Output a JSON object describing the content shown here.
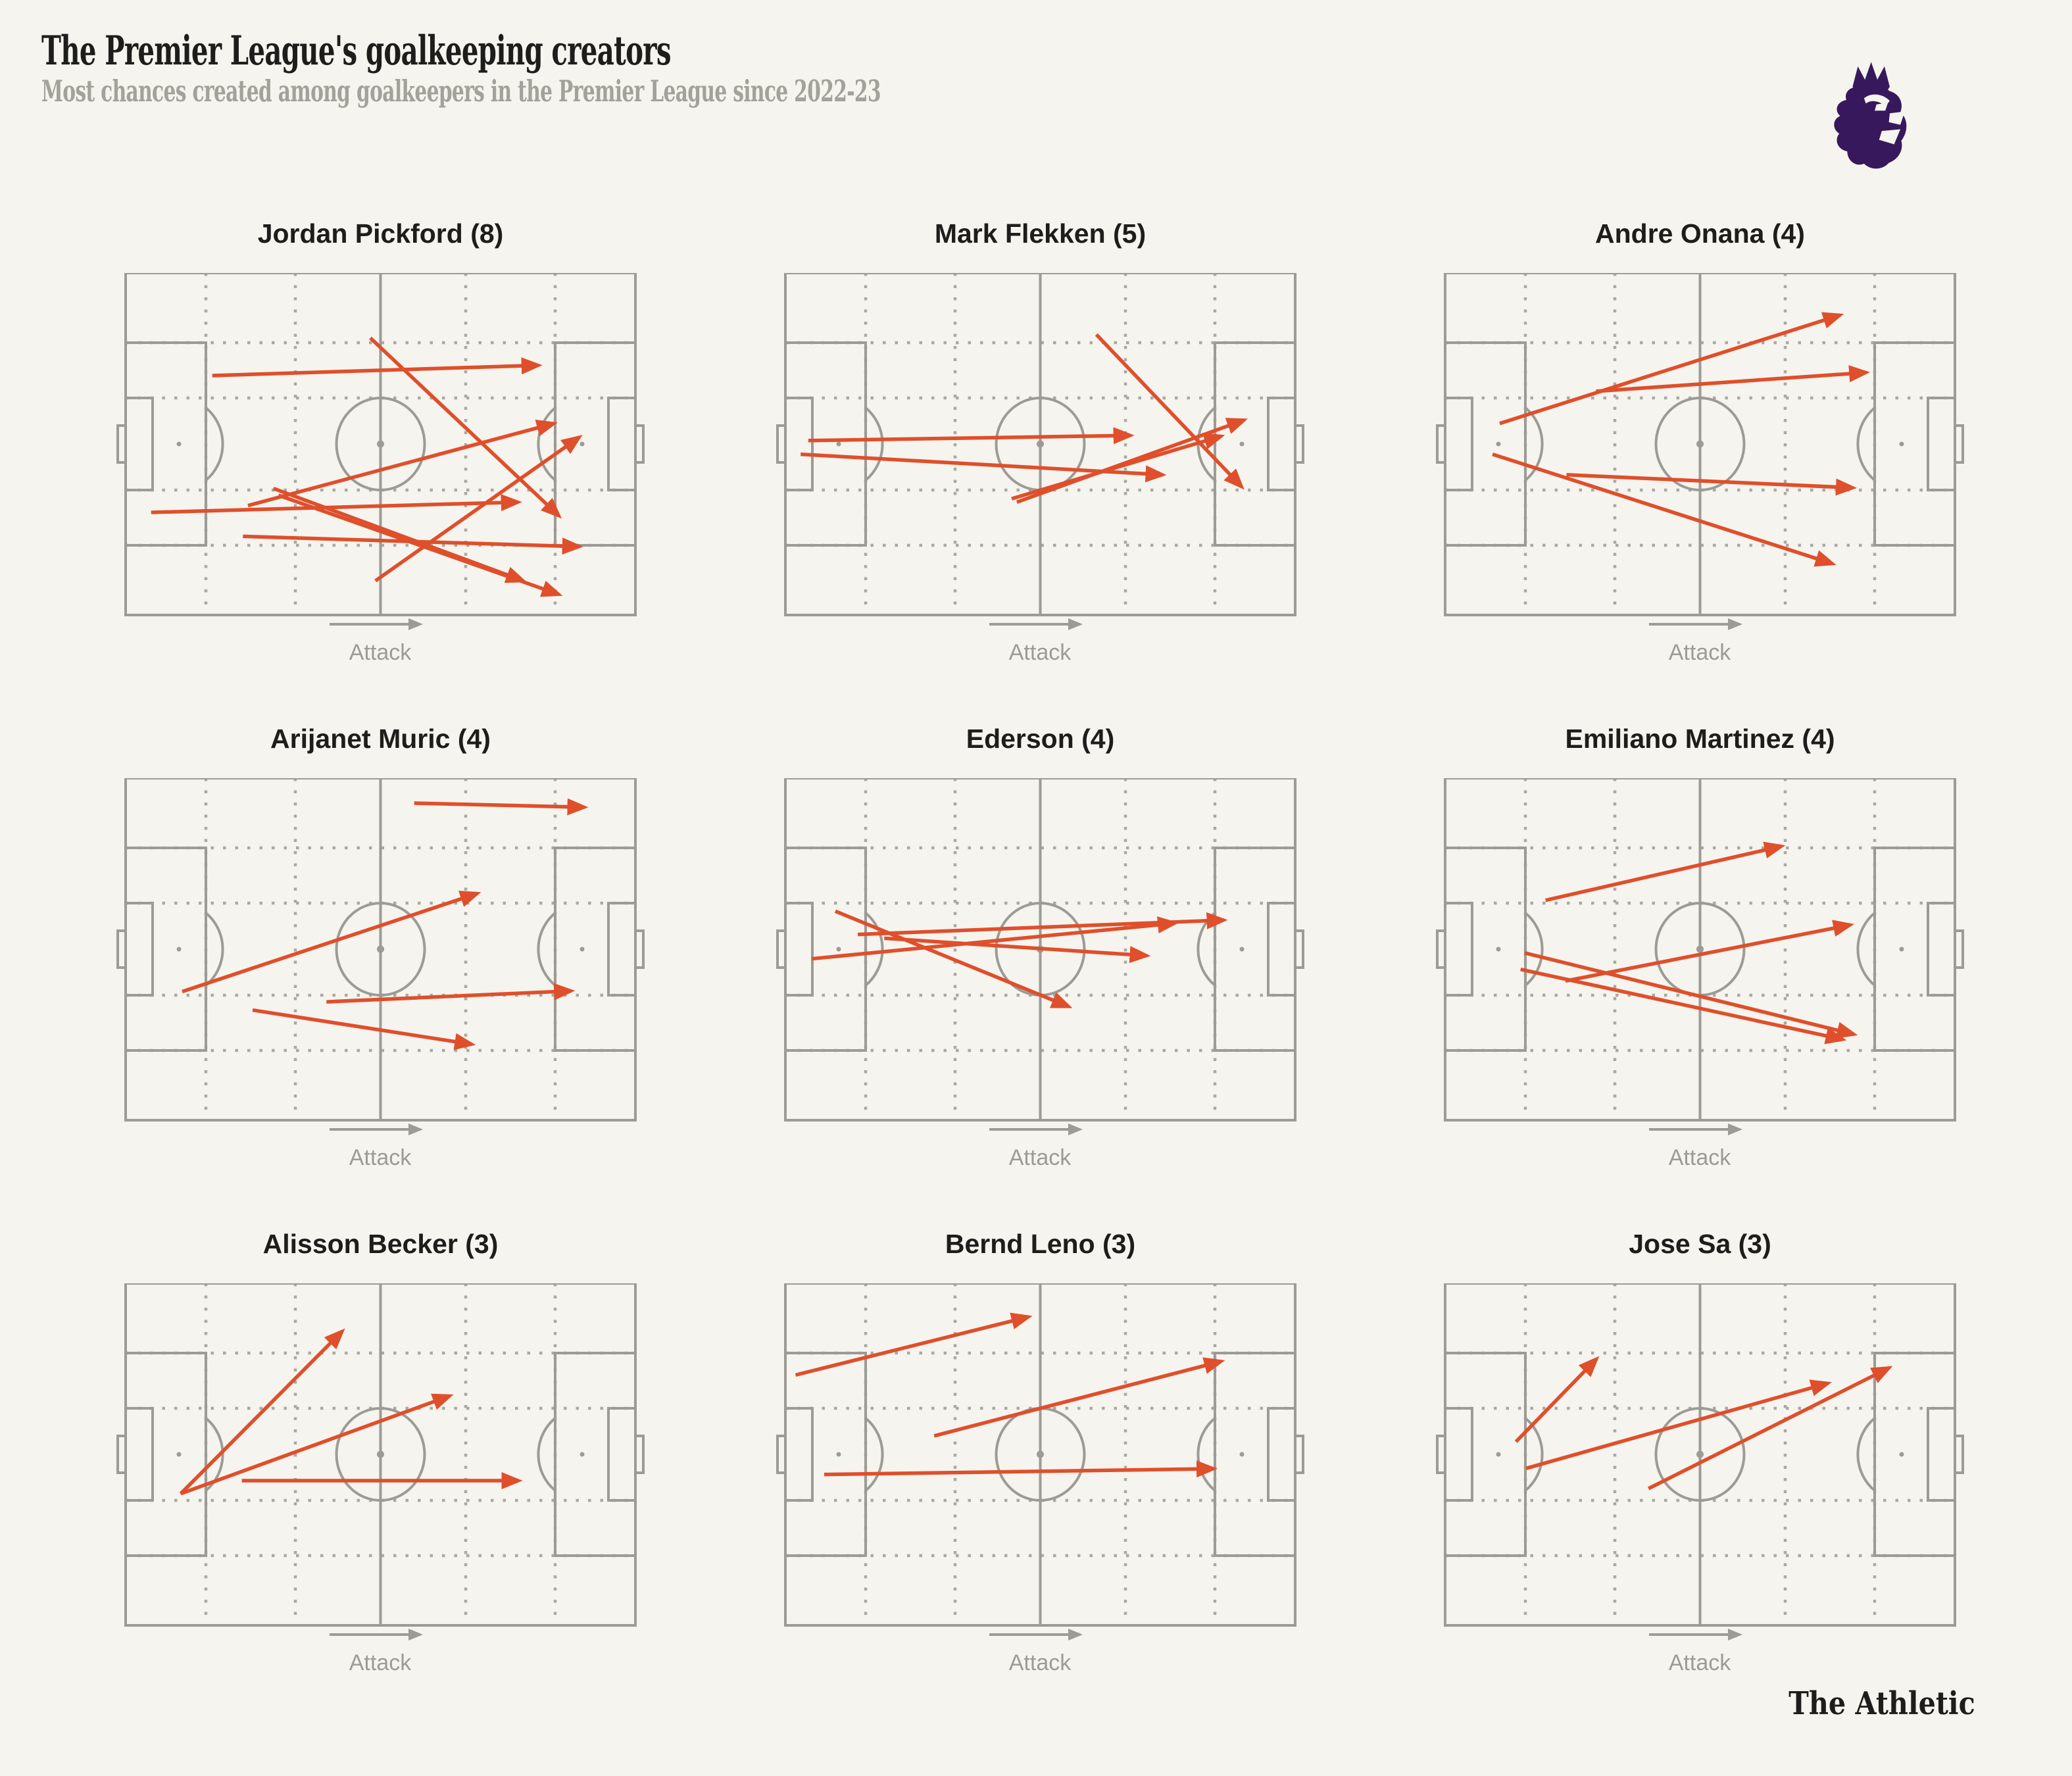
{
  "header": {
    "title": "The Premier League's goalkeeping creators",
    "subtitle": "Most chances created among goalkeepers in the Premier League since 2022-23"
  },
  "footer": {
    "brand": "The Athletic"
  },
  "pitch": {
    "attack_label": "Attack",
    "direction": "left-to-right"
  },
  "colors": {
    "background": "#F5F4EE",
    "pass_arrow": "#DF4F2B",
    "pitch_line": "#9C9B95",
    "zone_dots": "#A9A8A2",
    "heading_text": "#1D1D1B",
    "subtitle_text": "#A2A29A",
    "attack_text": "#9C9B95",
    "logo_purple": "#38185C"
  },
  "chart_data": {
    "type": "scatter",
    "variant": "small-multiples-soccer-pitch-pass-arrow-map",
    "units": "percent of pitch; x: 0 = own goal line, 100 = attacking goal line; y: 0 = top touchline, 100 = bottom touchline; each pass is [x1,y1,x2,y2]",
    "legend": "arrows show chances created (passes leading to shots) by each goalkeeper",
    "panels": [
      {
        "player": "Jordan Pickford",
        "chances_created": 8,
        "label": "Jordan Pickford (8)",
        "passes": [
          [
            17,
            30,
            81,
            27
          ],
          [
            48,
            19,
            85,
            71
          ],
          [
            24,
            68,
            84,
            44
          ],
          [
            49,
            90,
            89,
            48
          ],
          [
            5,
            70,
            77,
            67
          ],
          [
            23,
            77,
            89,
            80
          ],
          [
            29,
            63,
            78,
            90
          ],
          [
            30,
            65,
            85,
            94
          ]
        ]
      },
      {
        "player": "Mark Flekken",
        "chances_created": 5,
        "label": "Mark Flekken (5)",
        "passes": [
          [
            4.5,
            49,
            67.7,
            47.5
          ],
          [
            3,
            53,
            74,
            59
          ],
          [
            44.4,
            66,
            85.5,
            47.7
          ],
          [
            45.4,
            67,
            90,
            43
          ],
          [
            61,
            18,
            89.5,
            62.5
          ]
        ]
      },
      {
        "player": "Andre Onana",
        "chances_created": 4,
        "label": "Andre Onana (4)",
        "passes": [
          [
            10.7,
            44,
            77.5,
            12.3
          ],
          [
            29.6,
            34.6,
            82.6,
            29.1
          ],
          [
            9.3,
            53,
            76,
            85
          ],
          [
            23.8,
            59,
            80,
            62.8
          ]
        ]
      },
      {
        "player": "Arijanet Muric",
        "chances_created": 4,
        "label": "Arijanet Muric (4)",
        "passes": [
          [
            56.6,
            7.3,
            90,
            8.5
          ],
          [
            11.1,
            62.4,
            69,
            33.7
          ],
          [
            39.4,
            65.4,
            87.4,
            62.2
          ],
          [
            24.9,
            67.8,
            67.9,
            77.8
          ]
        ]
      },
      {
        "player": "Ederson",
        "chances_created": 4,
        "label": "Ederson (4)",
        "passes": [
          [
            9.8,
            38.9,
            55.6,
            66.8
          ],
          [
            14.2,
            45.7,
            86,
            41.5
          ],
          [
            5.2,
            52.8,
            76.4,
            42.4
          ],
          [
            19.4,
            46.8,
            70.9,
            51.9
          ]
        ]
      },
      {
        "player": "Emiliano Martinez",
        "chances_created": 4,
        "label": "Emiliano Martinez (4)",
        "passes": [
          [
            19.7,
            35.7,
            66,
            19.9
          ],
          [
            23.6,
            59.3,
            79.5,
            42.9
          ],
          [
            15.6,
            51.1,
            80.2,
            74.9
          ],
          [
            14.8,
            55.9,
            78,
            76.4
          ]
        ]
      },
      {
        "player": "Alisson Becker",
        "chances_created": 3,
        "label": "Alisson Becker (3)",
        "passes": [
          [
            10.8,
            61.5,
            42.5,
            14
          ],
          [
            10.8,
            61.5,
            63.6,
            32.9
          ],
          [
            22.8,
            57.7,
            77.1,
            57.7
          ]
        ]
      },
      {
        "player": "Bernd Leno",
        "chances_created": 3,
        "label": "Bernd Leno (3)",
        "passes": [
          [
            2,
            26.8,
            47.7,
            9.8
          ],
          [
            29.2,
            44.6,
            85.5,
            22.8
          ],
          [
            7.6,
            55.9,
            84,
            54.2
          ]
        ]
      },
      {
        "player": "Jose Sa",
        "chances_created": 3,
        "label": "Jose Sa (3)",
        "passes": [
          [
            13.9,
            46.3,
            29.7,
            22.1
          ],
          [
            15.9,
            54.1,
            75.1,
            29.2
          ],
          [
            39.9,
            60,
            87.1,
            24.7
          ]
        ]
      }
    ]
  }
}
